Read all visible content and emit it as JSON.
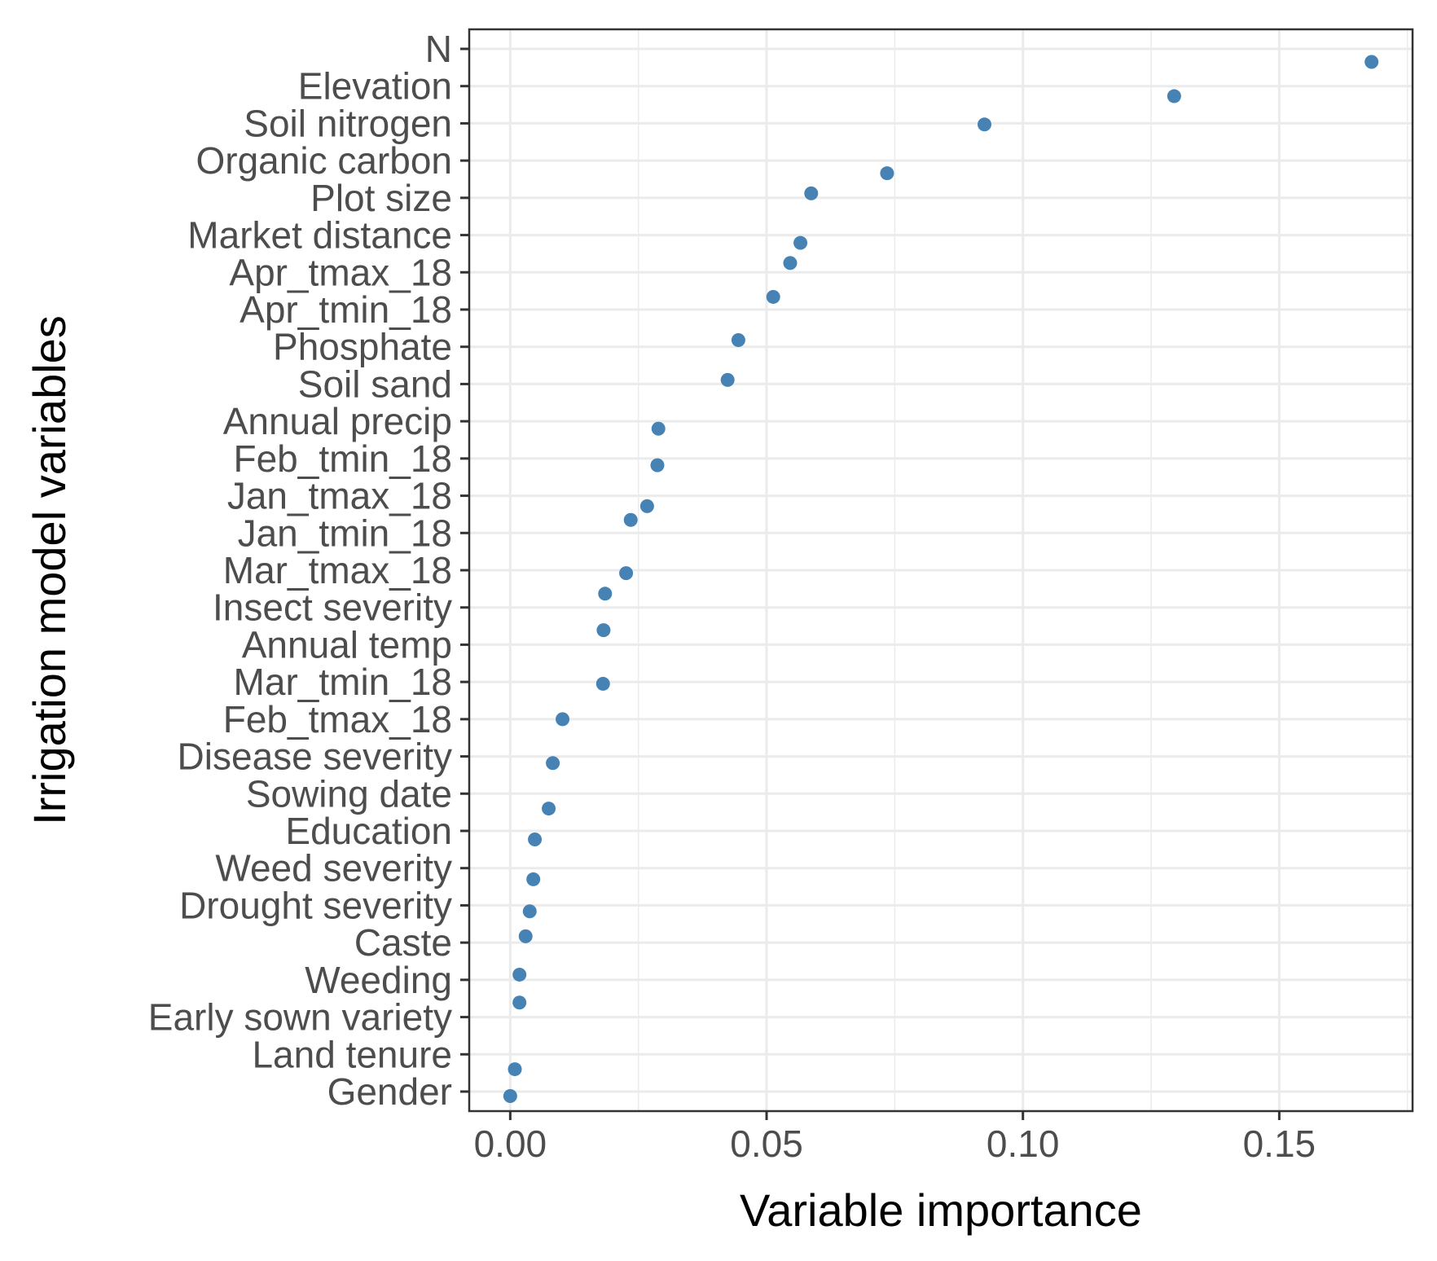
{
  "chart_data": {
    "type": "scatter",
    "title": "",
    "xlabel": "Variable importance",
    "ylabel": "Irrigation model variables",
    "xlim": [
      -0.008,
      0.176
    ],
    "xticks": [
      0.0,
      0.05,
      0.1,
      0.15
    ],
    "xtick_labels": [
      "0.00",
      "0.05",
      "0.10",
      "0.15"
    ],
    "grid": true,
    "legend": "none",
    "point_color": "#4682B4",
    "categories": [
      "N",
      "Elevation",
      "Soil nitrogen",
      "Organic carbon",
      "Plot size",
      "Market distance",
      "Apr_tmax_18",
      "Apr_tmin_18",
      "Phosphate",
      "Soil sand",
      "Annual precip",
      "Feb_tmin_18",
      "Jan_tmax_18",
      "Jan_tmin_18",
      "Mar_tmax_18",
      "Insect severity",
      "Annual temp",
      "Mar_tmin_18",
      "Feb_tmax_18",
      "Disease severity",
      "Sowing date",
      "Education",
      "Weed severity",
      "Drought severity",
      "Caste",
      "Weeding",
      "Early sown variety",
      "Land tenure",
      "Gender"
    ],
    "points": [
      {
        "x": 0.168,
        "y": 28.65
      },
      {
        "x": 0.1295,
        "y": 27.73
      },
      {
        "x": 0.0925,
        "y": 26.97
      },
      {
        "x": 0.0735,
        "y": 25.66
      },
      {
        "x": 0.0587,
        "y": 25.12
      },
      {
        "x": 0.0566,
        "y": 23.79
      },
      {
        "x": 0.0546,
        "y": 23.25
      },
      {
        "x": 0.0513,
        "y": 22.34
      },
      {
        "x": 0.0445,
        "y": 21.18
      },
      {
        "x": 0.0424,
        "y": 20.11
      },
      {
        "x": 0.0289,
        "y": 18.8
      },
      {
        "x": 0.0287,
        "y": 17.82
      },
      {
        "x": 0.0267,
        "y": 16.72
      },
      {
        "x": 0.0235,
        "y": 16.35
      },
      {
        "x": 0.0226,
        "y": 14.92
      },
      {
        "x": 0.0185,
        "y": 14.37
      },
      {
        "x": 0.0182,
        "y": 13.39
      },
      {
        "x": 0.0181,
        "y": 11.95
      },
      {
        "x": 0.0102,
        "y": 11.0
      },
      {
        "x": 0.0083,
        "y": 9.82
      },
      {
        "x": 0.0075,
        "y": 8.6
      },
      {
        "x": 0.0048,
        "y": 7.77
      },
      {
        "x": 0.0045,
        "y": 6.7
      },
      {
        "x": 0.0038,
        "y": 5.84
      },
      {
        "x": 0.003,
        "y": 5.17
      },
      {
        "x": 0.0018,
        "y": 4.14
      },
      {
        "x": 0.0018,
        "y": 3.39
      },
      {
        "x": 0.0009,
        "y": 1.6
      },
      {
        "x": 0.0,
        "y": 0.88
      }
    ]
  }
}
